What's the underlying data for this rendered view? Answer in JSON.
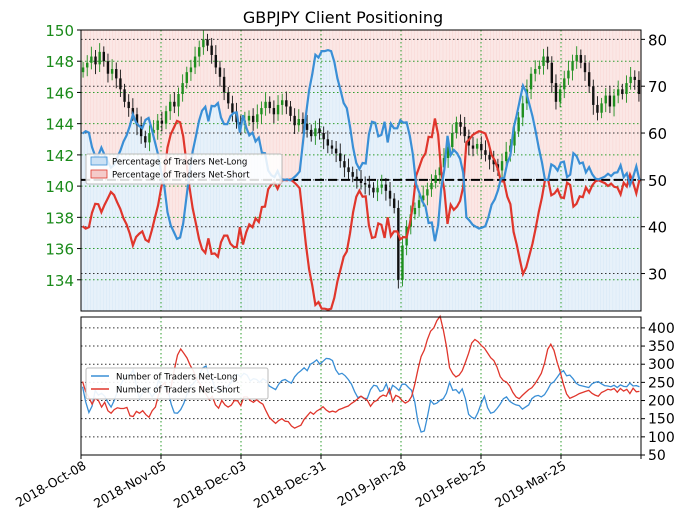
{
  "colors": {
    "price_axis": "#1a8a1a",
    "net_long": "#3a8fd6",
    "net_short": "#e0362c",
    "candle_up": "#1f8f1f",
    "candle_down": "#111111",
    "grid_green": "#2e9e2e",
    "grid_black": "#333333"
  },
  "chart_data": [
    {
      "type": "candlestick+line",
      "title": "GBPJPY Client Positioning",
      "x_ticks": [
        "2018-Oct-08",
        "2018-Nov-05",
        "2018-Dec-03",
        "2018-Dec-31",
        "2019-Jan-28",
        "2019-Feb-25",
        "2019-Mar-25"
      ],
      "price_axis": {
        "side": "left",
        "ylim": [
          132,
          150
        ],
        "ticks": [
          134,
          136,
          138,
          140,
          142,
          144,
          146,
          148,
          150
        ]
      },
      "percent_axis": {
        "side": "right",
        "ylim": [
          22,
          82
        ],
        "ticks": [
          30,
          40,
          50,
          60,
          70,
          80
        ]
      },
      "reference_line": 50,
      "legend": {
        "position": "upper-left",
        "entries": [
          "Percentage of Traders Net-Long",
          "Percentage of Traders Net-Short"
        ]
      },
      "price_close": [
        147.6,
        147.9,
        148.3,
        147.8,
        148.6,
        148.0,
        147.2,
        147.5,
        146.9,
        146.2,
        145.4,
        145.0,
        144.6,
        143.9,
        143.2,
        142.8,
        143.4,
        143.6,
        144.2,
        144.0,
        144.8,
        145.4,
        145.1,
        145.9,
        146.6,
        147.3,
        147.6,
        148.3,
        148.9,
        149.4,
        149.0,
        148.4,
        147.6,
        147.0,
        146.0,
        145.3,
        144.7,
        144.1,
        143.9,
        144.2,
        144.5,
        144.1,
        144.6,
        145.0,
        145.4,
        145.0,
        144.6,
        145.2,
        145.5,
        145.1,
        144.5,
        143.9,
        144.3,
        144.0,
        143.6,
        143.2,
        143.7,
        143.4,
        143.0,
        142.6,
        142.4,
        142.1,
        141.6,
        141.2,
        140.9,
        140.6,
        140.4,
        140.2,
        140.1,
        139.9,
        139.6,
        139.9,
        140.1,
        139.7,
        139.2,
        138.6,
        134.0,
        136.2,
        137.4,
        138.2,
        138.6,
        139.1,
        139.4,
        139.8,
        140.2,
        140.7,
        141.2,
        141.8,
        142.5,
        143.4,
        144.1,
        143.8,
        143.2,
        142.6,
        142.4,
        142.7,
        142.3,
        142.0,
        141.7,
        141.4,
        141.0,
        141.6,
        142.2,
        142.6,
        143.5,
        144.4,
        145.3,
        146.2,
        147.2,
        147.5,
        147.7,
        148.3,
        147.9,
        146.6,
        145.4,
        146.2,
        146.9,
        147.4,
        148.0,
        148.4,
        147.9,
        147.3,
        146.4,
        145.2,
        144.7,
        145.3,
        145.8,
        145.1,
        145.8,
        146.2,
        145.9,
        146.6,
        147.0,
        146.8,
        145.9
      ],
      "series": [
        {
          "name": "Percentage of Traders Net-Long",
          "values": [
            59.9,
            60.4,
            60.1,
            57.0,
            55.1,
            55.2,
            56.9,
            55.3,
            54.0,
            52.6,
            53.2,
            54.8,
            56.2,
            58.2,
            59.5,
            61.5,
            64.0,
            62.2,
            61.5,
            61.0,
            62.8,
            63.2,
            60.8,
            58.1,
            55.4,
            51.7,
            48.5,
            43.1,
            40.3,
            38.9,
            37.4,
            37.7,
            40.7,
            46.2,
            51.6,
            56.1,
            59.2,
            62.6,
            64.8,
            65.6,
            62.5,
            65.8,
            65.7,
            66.4,
            63.3,
            61.9,
            61.9,
            63.6,
            64.3,
            64.4,
            60.1,
            63.8,
            61.2,
            59.5,
            60.1,
            58.2,
            59.0,
            55.8,
            55.7,
            52.0,
            51.0,
            50.6,
            51.9,
            50.3,
            50.0,
            50.1,
            49.9,
            50.4,
            51.0,
            51.8,
            57.7,
            63.8,
            69.1,
            72.5,
            76.7,
            76.1,
            77.5,
            77.5,
            77.7,
            77.5,
            75.2,
            71.7,
            69.1,
            66.4,
            65.3,
            61.4,
            56.9,
            53.6,
            52.3,
            53.6,
            53.5,
            59.7,
            62.4,
            62.2,
            59.3,
            59.6,
            62.4,
            58.0,
            62.0,
            61.0,
            61.0,
            62.7,
            62.2,
            62.3,
            59.4,
            55.4,
            49.1,
            47.3,
            45.4,
            44.3,
            40.8,
            40.9,
            36.9,
            40.3,
            48.2,
            52.3,
            59.4,
            55.3,
            56.4,
            55.7,
            54.5,
            51.5,
            42.0,
            41.3,
            40.4,
            40.0,
            39.6,
            39.8,
            40.1,
            42.0,
            44.7,
            45.8,
            47.7,
            50.3,
            50.4,
            53.6,
            55.2,
            61.1,
            63.8,
            67.1,
            70.1,
            68.7,
            66.2,
            63.6,
            60.4,
            56.8,
            53.8,
            50.0,
            50.0,
            53.3,
            52.9,
            52.0,
            53.7,
            53.9,
            50.6,
            51.1,
            55.7,
            55.1,
            53.5,
            53.7,
            51.6,
            52.7,
            51.2,
            50.3,
            50.1,
            50.4,
            50.7,
            51.3,
            50.8,
            51.5,
            51.6,
            53.1,
            50.6,
            51.4,
            48.9,
            50.6,
            52.9,
            50.0
          ]
        },
        {
          "name": "Percentage of Traders Net-Short",
          "values": [
            40.1,
            39.6,
            39.9,
            43.0,
            44.9,
            44.8,
            43.1,
            44.7,
            46.0,
            47.4,
            46.8,
            45.2,
            43.8,
            41.8,
            40.5,
            38.5,
            36.0,
            37.8,
            38.5,
            39.0,
            37.2,
            36.8,
            39.2,
            41.9,
            44.6,
            48.3,
            51.5,
            56.9,
            59.7,
            61.1,
            62.6,
            62.3,
            59.3,
            53.8,
            48.4,
            43.9,
            40.8,
            37.4,
            35.2,
            34.4,
            37.5,
            34.2,
            34.3,
            33.6,
            36.7,
            38.1,
            38.1,
            36.4,
            35.7,
            35.6,
            39.9,
            36.2,
            38.8,
            40.5,
            39.9,
            41.8,
            41.0,
            44.2,
            44.3,
            48.0,
            49.0,
            49.4,
            48.1,
            49.7,
            50.0,
            49.9,
            50.1,
            49.6,
            49.0,
            48.2,
            42.3,
            36.2,
            30.9,
            27.5,
            23.3,
            23.9,
            22.5,
            22.5,
            22.3,
            22.5,
            24.8,
            28.3,
            30.9,
            33.6,
            34.7,
            38.6,
            43.1,
            46.4,
            47.7,
            46.4,
            46.5,
            40.3,
            37.6,
            37.8,
            40.7,
            40.4,
            37.6,
            42.0,
            38.0,
            39.0,
            39.0,
            37.3,
            37.8,
            37.7,
            40.6,
            44.6,
            50.9,
            52.7,
            54.6,
            55.7,
            59.2,
            59.1,
            63.1,
            59.7,
            51.8,
            47.7,
            40.6,
            44.7,
            43.6,
            44.3,
            45.5,
            48.5,
            58.0,
            58.7,
            59.6,
            60.0,
            60.4,
            60.2,
            59.9,
            58.0,
            55.3,
            54.2,
            52.3,
            49.7,
            49.6,
            46.4,
            44.8,
            38.9,
            36.2,
            32.9,
            29.9,
            31.3,
            33.8,
            36.4,
            39.6,
            43.2,
            46.2,
            50.0,
            50.0,
            46.7,
            47.1,
            48.0,
            46.3,
            46.1,
            49.4,
            48.9,
            44.3,
            44.9,
            46.5,
            46.3,
            48.4,
            47.3,
            48.8,
            49.7,
            49.9,
            49.6,
            49.3,
            48.7,
            49.2,
            48.5,
            48.4,
            46.9,
            49.4,
            48.6,
            51.1,
            49.4,
            47.1,
            50.0
          ]
        }
      ]
    },
    {
      "type": "line",
      "x_ticks": [
        "2018-Oct-08",
        "2018-Nov-05",
        "2018-Dec-03",
        "2018-Dec-31",
        "2019-Jan-28",
        "2019-Feb-25",
        "2019-Mar-25"
      ],
      "ylim": [
        50,
        430
      ],
      "y_ticks": [
        50,
        100,
        150,
        200,
        250,
        300,
        350,
        400
      ],
      "legend": {
        "position": "left",
        "entries": [
          "Number of Traders Net-Long",
          "Number of Traders Net-Short"
        ]
      },
      "series": [
        {
          "name": "Number of Traders Net-Long",
          "values": [
            238,
            196,
            167,
            185,
            228,
            215,
            220,
            212,
            195,
            182,
            200,
            225,
            242,
            260,
            271,
            268,
            285,
            240,
            205,
            222,
            235,
            224,
            210,
            224,
            256,
            240,
            235,
            228,
            190,
            166,
            165,
            175,
            192,
            218,
            240,
            246,
            258,
            272,
            290,
            295,
            268,
            256,
            230,
            240,
            225,
            224,
            240,
            250,
            265,
            272,
            265,
            275,
            270,
            254,
            260,
            258,
            250,
            260,
            255,
            240,
            235,
            230,
            245,
            255,
            258,
            252,
            248,
            265,
            275,
            282,
            290,
            282,
            300,
            305,
            312,
            300,
            308,
            316,
            315,
            310,
            285,
            272,
            275,
            268,
            258,
            245,
            224,
            208,
            212,
            205,
            206,
            230,
            242,
            240,
            225,
            228,
            246,
            220,
            242,
            236,
            228,
            245,
            245,
            236,
            228,
            196,
            142,
            113,
            116,
            155,
            200,
            190,
            193,
            201,
            205,
            220,
            250,
            228,
            230,
            220,
            232,
            205,
            162,
            154,
            150,
            168,
            192,
            212,
            180,
            165,
            168,
            178,
            190,
            205,
            210,
            198,
            192,
            188,
            186,
            176,
            182,
            188,
            205,
            212,
            214,
            210,
            216,
            230,
            246,
            252,
            264,
            276,
            282,
            268,
            270,
            260,
            248,
            242,
            240,
            238,
            236,
            246,
            250,
            252,
            246,
            241,
            240,
            238,
            242,
            236,
            243,
            239,
            238,
            248,
            240,
            241,
            238
          ]
        },
        {
          "name": "Number of Traders Net-Short",
          "values": [
            252,
            224,
            208,
            190,
            206,
            200,
            182,
            195,
            172,
            165,
            175,
            180,
            178,
            178,
            181,
            158,
            156,
            170,
            165,
            172,
            161,
            154,
            172,
            182,
            215,
            240,
            250,
            220,
            240,
            285,
            325,
            342,
            330,
            317,
            297,
            282,
            260,
            248,
            230,
            218,
            203,
            212,
            188,
            179,
            200,
            188,
            182,
            187,
            200,
            199,
            186,
            210,
            210,
            200,
            195,
            202,
            195,
            190,
            171,
            154,
            145,
            137,
            145,
            150,
            143,
            142,
            130,
            124,
            128,
            132,
            148,
            158,
            168,
            162,
            171,
            176,
            183,
            174,
            168,
            171,
            168,
            175,
            178,
            182,
            185,
            192,
            198,
            205,
            212,
            206,
            201,
            184,
            196,
            200,
            210,
            215,
            212,
            232,
            198,
            214,
            210,
            200,
            193,
            198,
            211,
            245,
            285,
            321,
            339,
            368,
            391,
            400,
            420,
            432,
            395,
            350,
            290,
            274,
            265,
            270,
            282,
            305,
            330,
            358,
            368,
            362,
            352,
            344,
            331,
            318,
            310,
            292,
            266,
            255,
            251,
            240,
            222,
            210,
            205,
            214,
            222,
            230,
            235,
            246,
            260,
            275,
            302,
            341,
            355,
            338,
            305,
            278,
            244,
            218,
            206,
            210,
            214,
            219,
            222,
            225,
            228,
            220,
            215,
            212,
            222,
            226,
            231,
            229,
            233,
            223,
            233,
            226,
            231,
            219,
            234,
            224,
            225
          ]
        }
      ]
    }
  ]
}
